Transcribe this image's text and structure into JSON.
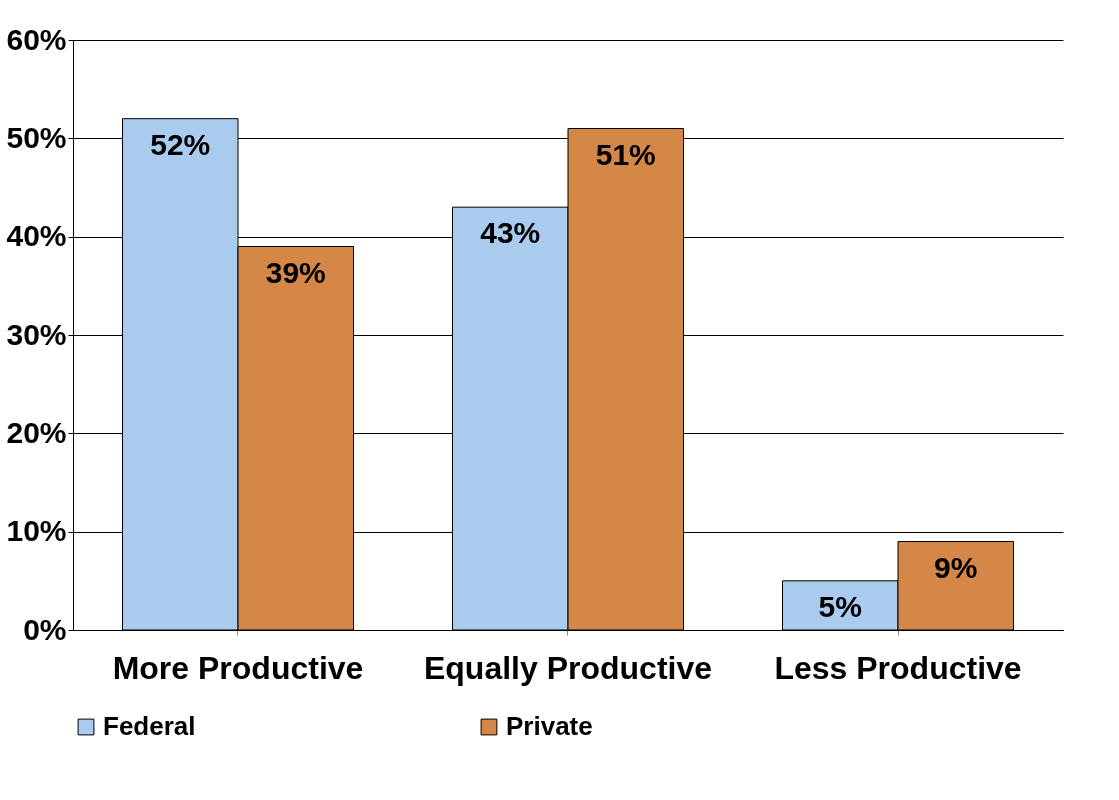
{
  "chart_data": {
    "type": "bar",
    "categories": [
      "More Productive",
      "Equally Productive",
      "Less Productive"
    ],
    "series": [
      {
        "name": "Federal",
        "color": "#a9cbee",
        "values": [
          52,
          43,
          5
        ],
        "value_labels": [
          "52%",
          "43%",
          "5%"
        ]
      },
      {
        "name": "Private",
        "color": "#d58747",
        "values": [
          39,
          51,
          9
        ],
        "value_labels": [
          "39%",
          "51%",
          "9%"
        ]
      }
    ],
    "ylim": [
      0,
      60
    ],
    "yticks": [
      {
        "value": 0,
        "label": "0%"
      },
      {
        "value": 10,
        "label": "10%"
      },
      {
        "value": 20,
        "label": "20%"
      },
      {
        "value": 30,
        "label": "30%"
      },
      {
        "value": 40,
        "label": "40%"
      },
      {
        "value": 50,
        "label": "50%"
      },
      {
        "value": 60,
        "label": "60%"
      }
    ],
    "grid": "y",
    "legend": "bottom"
  }
}
